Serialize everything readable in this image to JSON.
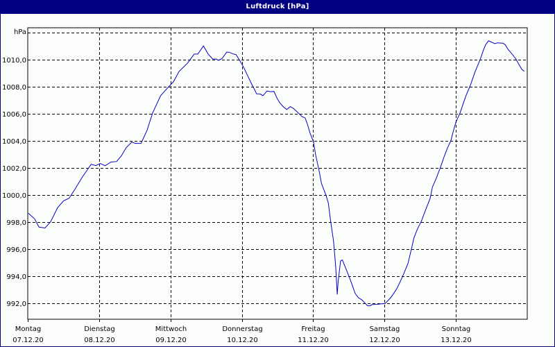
{
  "window": {
    "title": "Luftdruck [hPa]",
    "title_bar_color": "#000080",
    "background_color": "#FCFEFC"
  },
  "chart_data": {
    "type": "line",
    "title": "Luftdruck [hPa]",
    "xlabel": "",
    "ylabel": "hPa",
    "unit_label": "hPa",
    "ylim": [
      991.2,
      1012.4
    ],
    "xlim_hours": [
      0,
      168
    ],
    "grid": true,
    "grid_style": "dashed",
    "legend": null,
    "line_color": "#0000C8",
    "y_ticks": [
      {
        "value": 1010,
        "label": "1010,0"
      },
      {
        "value": 1008,
        "label": "1008,0"
      },
      {
        "value": 1006,
        "label": "1006,0"
      },
      {
        "value": 1004,
        "label": "1004,0"
      },
      {
        "value": 1002,
        "label": "1002,0"
      },
      {
        "value": 1000,
        "label": "1000,0"
      },
      {
        "value": 998,
        "label": "998,0"
      },
      {
        "value": 996,
        "label": "996,0"
      },
      {
        "value": 994,
        "label": "994,0"
      },
      {
        "value": 992,
        "label": "992,0"
      }
    ],
    "top_gridline_value": 1012,
    "x_ticks": [
      {
        "hour": 0,
        "day": "Montag",
        "date": "07.12.20"
      },
      {
        "hour": 24,
        "day": "Dienstag",
        "date": "08.12.20"
      },
      {
        "hour": 48,
        "day": "Mittwoch",
        "date": "09.12.20"
      },
      {
        "hour": 72,
        "day": "Donnerstag",
        "date": "10.12.20"
      },
      {
        "hour": 96,
        "day": "Freitag",
        "date": "11.12.20"
      },
      {
        "hour": 120,
        "day": "Samstag",
        "date": "12.12.20"
      },
      {
        "hour": 144,
        "day": "Sonntag",
        "date": "13.12.20"
      }
    ],
    "series": [
      {
        "name": "Luftdruck",
        "x_unit": "hours since Montag 07.12.20 00:00",
        "points": [
          [
            0.2,
            998.63
          ],
          [
            2.3,
            998.21
          ],
          [
            3.8,
            997.6
          ],
          [
            5.8,
            997.54
          ],
          [
            7.7,
            998.0
          ],
          [
            10.0,
            999.03
          ],
          [
            12.0,
            999.54
          ],
          [
            13.9,
            999.74
          ],
          [
            15.9,
            1000.41
          ],
          [
            18.2,
            1001.25
          ],
          [
            20.1,
            1001.85
          ],
          [
            21.3,
            1002.24
          ],
          [
            22.9,
            1002.15
          ],
          [
            24.4,
            1002.31
          ],
          [
            26.0,
            1002.14
          ],
          [
            28.0,
            1002.41
          ],
          [
            29.9,
            1002.45
          ],
          [
            31.5,
            1002.87
          ],
          [
            33.1,
            1003.47
          ],
          [
            35.0,
            1003.88
          ],
          [
            36.2,
            1003.79
          ],
          [
            38.1,
            1003.79
          ],
          [
            40.1,
            1004.75
          ],
          [
            42.0,
            1006.04
          ],
          [
            44.7,
            1007.32
          ],
          [
            47.1,
            1007.91
          ],
          [
            49.0,
            1008.34
          ],
          [
            50.9,
            1009.11
          ],
          [
            53.7,
            1009.71
          ],
          [
            56.0,
            1010.39
          ],
          [
            57.2,
            1010.39
          ],
          [
            59.1,
            1010.99
          ],
          [
            60.7,
            1010.39
          ],
          [
            62.2,
            1010.02
          ],
          [
            63.4,
            1010.02
          ],
          [
            64.2,
            1009.93
          ],
          [
            65.3,
            1010.05
          ],
          [
            66.9,
            1010.53
          ],
          [
            67.7,
            1010.53
          ],
          [
            69.2,
            1010.39
          ],
          [
            70.0,
            1010.36
          ],
          [
            71.2,
            1009.96
          ],
          [
            72.7,
            1009.37
          ],
          [
            75.1,
            1008.26
          ],
          [
            77.0,
            1007.45
          ],
          [
            78.2,
            1007.44
          ],
          [
            79.1,
            1007.32
          ],
          [
            80.5,
            1007.66
          ],
          [
            81.7,
            1007.61
          ],
          [
            82.8,
            1007.63
          ],
          [
            84.0,
            1007.06
          ],
          [
            84.7,
            1006.81
          ],
          [
            85.9,
            1006.51
          ],
          [
            87.1,
            1006.29
          ],
          [
            88.3,
            1006.51
          ],
          [
            89.4,
            1006.37
          ],
          [
            91.0,
            1006.04
          ],
          [
            92.2,
            1005.78
          ],
          [
            93.3,
            1005.66
          ],
          [
            94.1,
            1005.18
          ],
          [
            94.9,
            1004.58
          ],
          [
            96.1,
            1003.9
          ],
          [
            96.8,
            1002.96
          ],
          [
            98.0,
            1001.76
          ],
          [
            98.8,
            1000.82
          ],
          [
            100.3,
            999.96
          ],
          [
            101.1,
            999.37
          ],
          [
            101.9,
            998.0
          ],
          [
            102.8,
            996.63
          ],
          [
            103.3,
            995.44
          ],
          [
            103.6,
            994.58
          ],
          [
            104.1,
            992.62
          ],
          [
            104.4,
            993.55
          ],
          [
            104.8,
            994.32
          ],
          [
            105.2,
            995.09
          ],
          [
            105.8,
            995.18
          ],
          [
            106.6,
            994.75
          ],
          [
            107.7,
            994.15
          ],
          [
            108.9,
            993.47
          ],
          [
            110.1,
            992.7
          ],
          [
            111.2,
            992.39
          ],
          [
            112.4,
            992.22
          ],
          [
            114.3,
            991.79
          ],
          [
            115.1,
            991.79
          ],
          [
            115.9,
            991.88
          ],
          [
            117.4,
            991.9
          ],
          [
            120.2,
            991.96
          ],
          [
            122.1,
            992.39
          ],
          [
            124.1,
            993.04
          ],
          [
            125.8,
            993.81
          ],
          [
            127.9,
            994.92
          ],
          [
            129.1,
            996.04
          ],
          [
            129.9,
            996.81
          ],
          [
            131.1,
            997.49
          ],
          [
            132.4,
            998.04
          ],
          [
            133.8,
            998.86
          ],
          [
            135.3,
            999.71
          ],
          [
            136.1,
            1000.56
          ],
          [
            137.3,
            1001.16
          ],
          [
            138.8,
            1002.02
          ],
          [
            140.0,
            1002.78
          ],
          [
            141.2,
            1003.47
          ],
          [
            142.3,
            1003.98
          ],
          [
            143.1,
            1004.67
          ],
          [
            144.0,
            1005.35
          ],
          [
            145.4,
            1006.04
          ],
          [
            147.4,
            1007.32
          ],
          [
            148.9,
            1008.09
          ],
          [
            150.5,
            1009.11
          ],
          [
            152.1,
            1009.96
          ],
          [
            153.2,
            1010.65
          ],
          [
            154.0,
            1011.08
          ],
          [
            155.0,
            1011.37
          ],
          [
            155.9,
            1011.28
          ],
          [
            157.1,
            1011.16
          ],
          [
            157.9,
            1011.22
          ],
          [
            159.8,
            1011.19
          ],
          [
            160.6,
            1011.08
          ],
          [
            161.4,
            1010.78
          ],
          [
            162.9,
            1010.39
          ],
          [
            164.1,
            1010.05
          ],
          [
            165.0,
            1009.71
          ],
          [
            166.1,
            1009.28
          ],
          [
            167.0,
            1009.11
          ]
        ]
      }
    ]
  }
}
